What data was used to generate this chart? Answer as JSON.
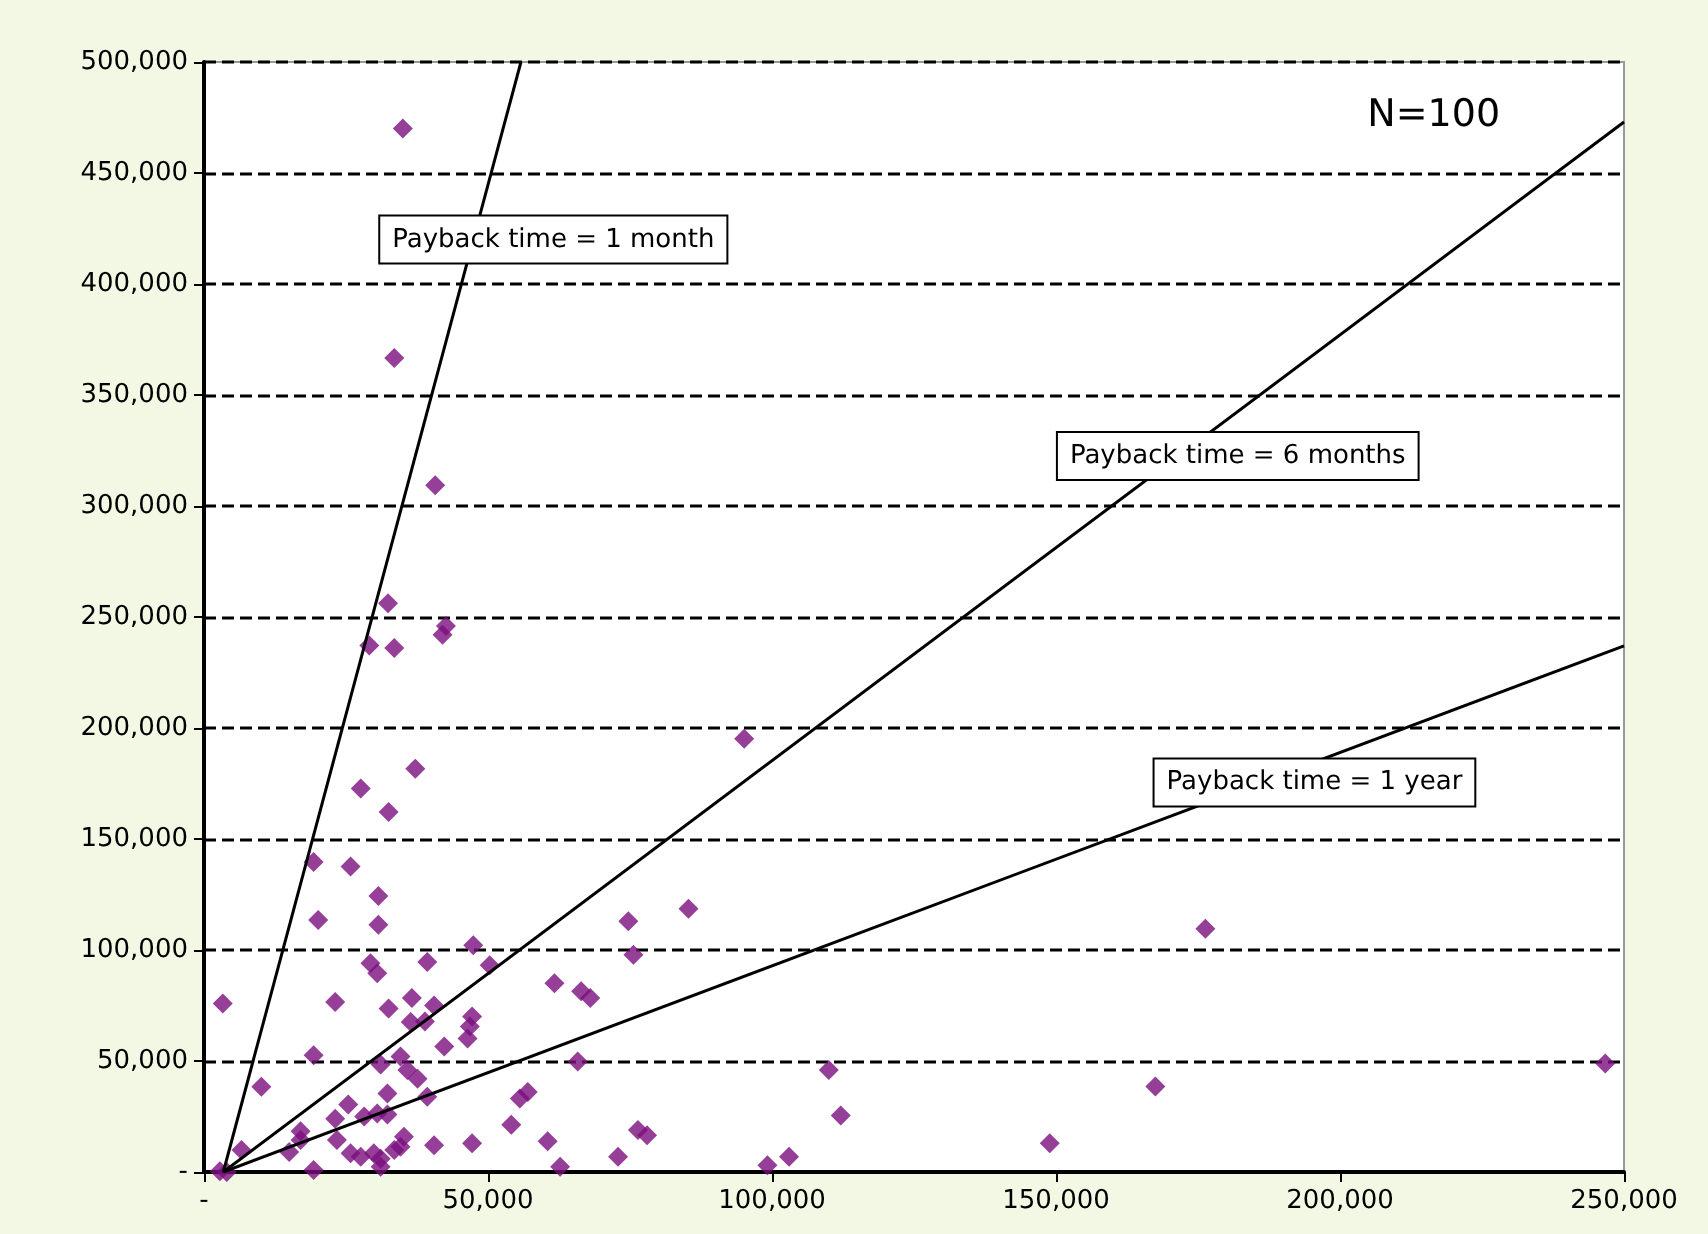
{
  "chart_data": {
    "type": "scatter",
    "marker": "diamond",
    "grid": "y",
    "xlim": [
      0,
      250000
    ],
    "xticks": [
      {
        "value": 0,
        "label": "-"
      },
      {
        "value": 50000,
        "label": "50,000"
      },
      {
        "value": 100000,
        "label": "100,000"
      },
      {
        "value": 150000,
        "label": "150,000"
      },
      {
        "value": 200000,
        "label": "200,000"
      },
      {
        "value": 250000,
        "label": "250,000"
      }
    ],
    "ylim": [
      0,
      500000
    ],
    "yticks": [
      {
        "value": 0,
        "label": "-"
      },
      {
        "value": 50000,
        "label": "50,000"
      },
      {
        "value": 100000,
        "label": "100,000"
      },
      {
        "value": 150000,
        "label": "150,000"
      },
      {
        "value": 200000,
        "label": "200,000"
      },
      {
        "value": 250000,
        "label": "250,000"
      },
      {
        "value": 300000,
        "label": "300,000"
      },
      {
        "value": 350000,
        "label": "350,000"
      },
      {
        "value": 400000,
        "label": "400,000"
      },
      {
        "value": 450000,
        "label": "450,000"
      },
      {
        "value": 500000,
        "label": "500,000"
      }
    ],
    "annotations": [
      "Payback time = 1 month",
      "Payback time = 6 months",
      "Payback time = 1 year",
      "N=100"
    ],
    "series": [
      {
        "color": "#7a0f7e",
        "x": [
          35000,
          33500,
          40700,
          32400,
          42000,
          42600,
          29100,
          33500,
          37200,
          27600,
          32500,
          19300,
          25800,
          30700,
          20100,
          30700,
          47400,
          29300,
          30500,
          39300,
          50300,
          3300,
          23100,
          36600,
          32500,
          40500,
          36400,
          38900,
          47200,
          46800,
          46400,
          42300,
          19300,
          31100,
          34600,
          35800,
          37600,
          39300,
          32300,
          10100,
          25400,
          23100,
          28200,
          30500,
          32300,
          17000,
          17000,
          6600,
          15000,
          23400,
          25800,
          27600,
          29900,
          31100,
          33500,
          35200,
          34600,
          19300,
          31100,
          40500,
          47200,
          2800,
          4000,
          95100,
          85300,
          74700,
          75600,
          61700,
          66400,
          68000,
          65800,
          57000,
          55600,
          54100,
          60500,
          62700,
          72900,
          76400,
          78000,
          99200,
          103000,
          110000,
          112100,
          148900,
          176300,
          167500,
          246700
        ],
        "values": [
          470000,
          366700,
          309300,
          256200,
          242000,
          246000,
          237200,
          236000,
          181700,
          172700,
          162200,
          139600,
          137600,
          124300,
          113500,
          111400,
          102100,
          94000,
          89500,
          94600,
          93100,
          75900,
          76600,
          78400,
          73600,
          75000,
          67600,
          67800,
          70000,
          65500,
          60100,
          56500,
          52600,
          48400,
          52000,
          45900,
          42000,
          33900,
          35400,
          38400,
          30400,
          24000,
          25000,
          26400,
          25900,
          18300,
          14400,
          9900,
          9000,
          14400,
          8400,
          6900,
          8400,
          6000,
          9900,
          15900,
          11400,
          900,
          2400,
          12000,
          12900,
          300,
          0,
          195200,
          118600,
          112900,
          97900,
          85000,
          81400,
          78400,
          49800,
          36000,
          33100,
          21300,
          13800,
          2400,
          6900,
          18900,
          16500,
          3000,
          6900,
          45900,
          25500,
          12900,
          109600,
          38500,
          48900
        ]
      },
      {
        "type": "line",
        "color": "#000000",
        "marker": "none",
        "x": [
          3400,
          55800
        ],
        "values": [
          0,
          500000
        ]
      },
      {
        "type": "line",
        "color": "#000000",
        "marker": "none",
        "x": [
          3400,
          250000
        ],
        "values": [
          0,
          473000
        ]
      },
      {
        "type": "line",
        "color": "#000000",
        "marker": "none",
        "x": [
          3400,
          250000
        ],
        "values": [
          0,
          237000
        ]
      }
    ]
  }
}
